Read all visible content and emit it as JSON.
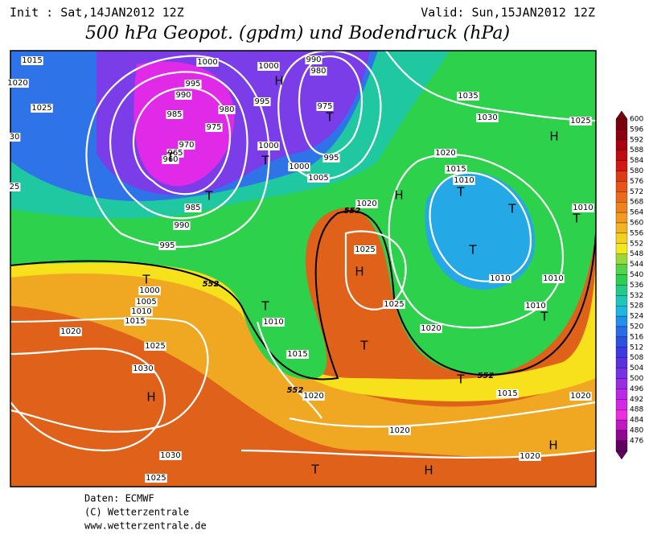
{
  "header": {
    "init": "Init : Sat,14JAN2012 12Z",
    "valid": "Valid: Sun,15JAN2012 12Z",
    "title": "500 hPa Geopot. (gpdm) und Bodendruck (hPa)"
  },
  "colorbar": {
    "ticks": [
      600,
      596,
      592,
      588,
      584,
      580,
      576,
      572,
      568,
      564,
      560,
      556,
      552,
      548,
      544,
      540,
      536,
      532,
      528,
      524,
      520,
      516,
      512,
      508,
      504,
      500,
      496,
      492,
      488,
      484,
      480,
      476
    ]
  },
  "isobar_labels": [
    "1015",
    "1020",
    "1025",
    "30",
    "25",
    "1000",
    "995",
    "990",
    "985",
    "980",
    "975",
    "970",
    "965",
    "960",
    "985",
    "990",
    "995",
    "1000",
    "1005",
    "1010",
    "1015",
    "1020",
    "1025",
    "1030",
    "1030",
    "1025",
    "1000",
    "995",
    "1000",
    "995",
    "1000",
    "1005",
    "975",
    "980",
    "990",
    "1035",
    "1030",
    "1025",
    "1020",
    "1015",
    "1010",
    "1020",
    "1025",
    "1025",
    "1010",
    "1010",
    "1010",
    "1010",
    "1020",
    "1015",
    "1020",
    "1020",
    "1020",
    "1010",
    "1015",
    "1020"
  ],
  "contour_labels": [
    "552",
    "552",
    "552",
    "552"
  ],
  "pressure_centers": [
    "H",
    "T",
    "T",
    "T",
    "T",
    "T",
    "T",
    "H",
    "T",
    "T",
    "T",
    "T",
    "H",
    "H",
    "T",
    "T",
    "T",
    "H",
    "H",
    "T",
    "H"
  ],
  "footer": [
    "Daten: ECMWF",
    "(C) Wetterzentrale",
    "www.wetterzentrale.de"
  ]
}
